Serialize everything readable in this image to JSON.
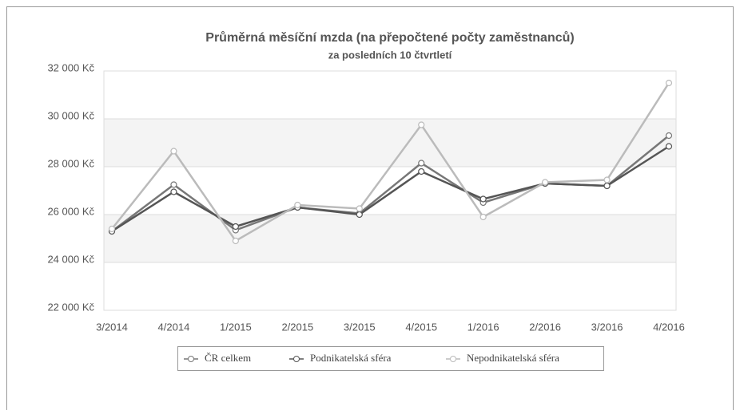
{
  "chart_data": {
    "type": "line",
    "title": "Průměrná měsíční mzda (na přepočtené počty zaměstnanců)",
    "subtitle": "za posledních 10 čtvrtletí",
    "categories": [
      "3/2014",
      "4/2014",
      "1/2015",
      "2/2015",
      "3/2015",
      "4/2015",
      "1/2016",
      "2/2016",
      "3/2016",
      "4/2016"
    ],
    "series": [
      {
        "name": "ČR celkem",
        "color": "#777777",
        "values": [
          25300,
          27250,
          25350,
          26300,
          26050,
          28150,
          26500,
          27300,
          27200,
          29300
        ]
      },
      {
        "name": "Podnikatelská sféra",
        "color": "#555555",
        "values": [
          25300,
          26950,
          25500,
          26300,
          26000,
          27800,
          26650,
          27300,
          27200,
          28850
        ]
      },
      {
        "name": "Nepodnikatelská sféra",
        "color": "#bbbbbb",
        "values": [
          25400,
          28650,
          24900,
          26400,
          26250,
          29750,
          25900,
          27350,
          27450,
          31500
        ]
      }
    ],
    "ylim": [
      22000,
      32000
    ],
    "yticks": [
      {
        "value": 22000,
        "label": "22 000 Kč"
      },
      {
        "value": 24000,
        "label": "24 000 Kč"
      },
      {
        "value": 26000,
        "label": "26 000 Kč"
      },
      {
        "value": 28000,
        "label": "28 000 Kč"
      },
      {
        "value": 30000,
        "label": "30 000 Kč"
      },
      {
        "value": 32000,
        "label": "32 000 Kč"
      }
    ],
    "grid": true
  }
}
